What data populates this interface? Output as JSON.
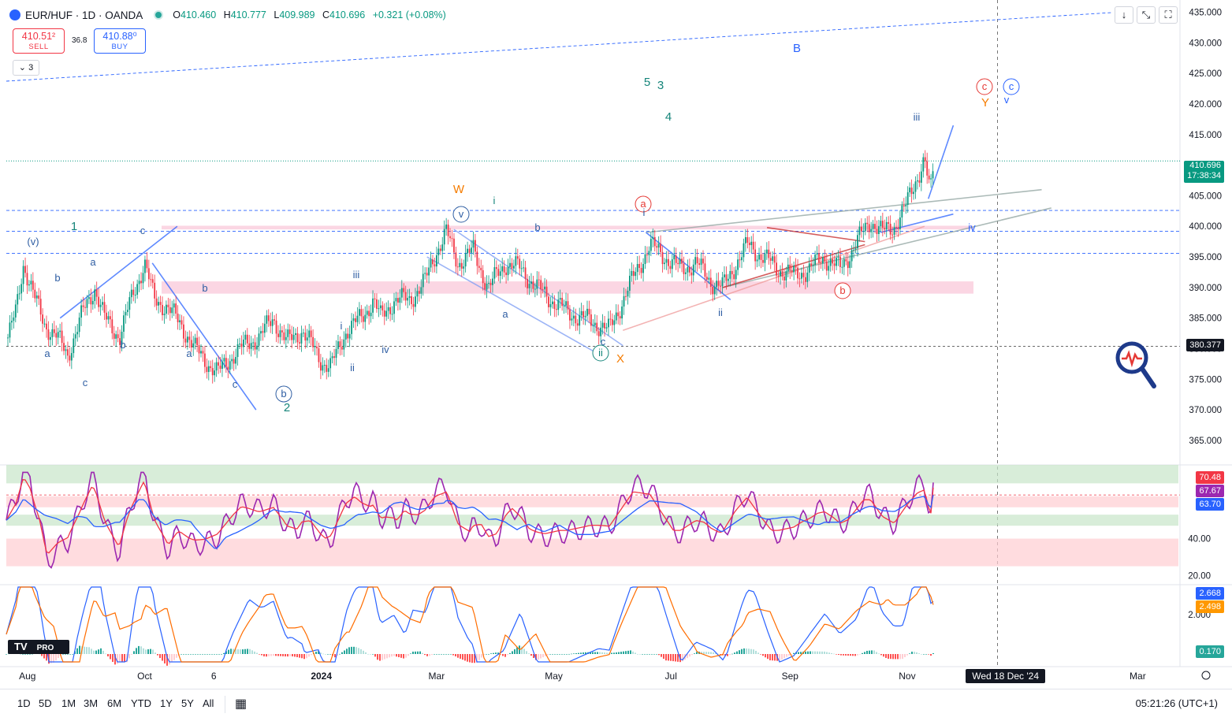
{
  "header": {
    "symbol": "EUR/HUF · 1D · OANDA",
    "open_label": "O",
    "open": "410.460",
    "high_label": "H",
    "high": "410.777",
    "low_label": "L",
    "low": "409.989",
    "close_label": "C",
    "close": "410.696",
    "change": "+0.321 (+0.08%)"
  },
  "trade": {
    "sell_price": "410.51²",
    "sell_label": "SELL",
    "spread": "36.8",
    "buy_price": "410.88⁰",
    "buy_label": "BUY",
    "layers_count": "3"
  },
  "toolbar": {
    "down_icon": "arrow-down-icon",
    "collapse_icon": "collapse-icon",
    "fullscreen_icon": "fullscreen-icon"
  },
  "price_labels": {
    "last": "410.696",
    "countdown": "17:38:34",
    "crosshair": "380.377"
  },
  "indicator_labels": {
    "rsi_a": "70.48",
    "rsi_b": "67.67",
    "rsi_c": "63.70",
    "macd_a": "2.668",
    "macd_b": "2.498",
    "macd_c": "0.170"
  },
  "crosshair_date": "Wed 18 Dec '24",
  "bottom": {
    "timeframes": [
      "1D",
      "5D",
      "1M",
      "3M",
      "6M",
      "YTD",
      "1Y",
      "5Y",
      "All"
    ],
    "clock": "05:21:26 (UTC+1)"
  },
  "chart_data": [
    {
      "type": "candlestick",
      "title": "EUR/HUF · 1D · OANDA",
      "ylim": [
        361,
        437
      ],
      "y_ticks": [
        435,
        430,
        425,
        420,
        415,
        410,
        405,
        400,
        395,
        390,
        385,
        380,
        375,
        370,
        365
      ],
      "y_tick_labels": [
        "435.000",
        "430.000",
        "425.000",
        "420.000",
        "415.000",
        "410.000",
        "405.000",
        "400.000",
        "395.000",
        "390.000",
        "385.000",
        "380.000",
        "375.000",
        "370.000",
        "365.000"
      ],
      "x_ticks": [
        {
          "label": "Aug",
          "date": "2023-08-01"
        },
        {
          "label": "Oct",
          "date": "2023-10-01"
        },
        {
          "label": "6",
          "date": "2023-11-06"
        },
        {
          "label": "2024",
          "date": "2024-01-01"
        },
        {
          "label": "Mar",
          "date": "2024-03-01"
        },
        {
          "label": "May",
          "date": "2024-05-01"
        },
        {
          "label": "Jul",
          "date": "2024-07-01"
        },
        {
          "label": "Sep",
          "date": "2024-09-01"
        },
        {
          "label": "Nov",
          "date": "2024-11-01"
        },
        {
          "label": "Mar",
          "date": "2025-03-01"
        }
      ],
      "x_range": [
        "2023-07-21",
        "2025-03-23"
      ],
      "price_path": [
        {
          "date": "2023-07-21",
          "price": 381
        },
        {
          "date": "2023-07-26",
          "price": 386
        },
        {
          "date": "2023-07-30",
          "price": 394
        },
        {
          "date": "2023-08-05",
          "price": 388
        },
        {
          "date": "2023-08-10",
          "price": 384
        },
        {
          "date": "2023-08-16",
          "price": 382
        },
        {
          "date": "2023-08-22",
          "price": 379
        },
        {
          "date": "2023-08-30",
          "price": 386
        },
        {
          "date": "2023-09-05",
          "price": 390
        },
        {
          "date": "2023-09-10",
          "price": 385
        },
        {
          "date": "2023-09-18",
          "price": 382
        },
        {
          "date": "2023-09-25",
          "price": 389
        },
        {
          "date": "2023-10-01",
          "price": 394
        },
        {
          "date": "2023-10-06",
          "price": 388
        },
        {
          "date": "2023-10-12",
          "price": 387
        },
        {
          "date": "2023-10-20",
          "price": 384
        },
        {
          "date": "2023-10-27",
          "price": 380
        },
        {
          "date": "2023-11-02",
          "price": 378
        },
        {
          "date": "2023-11-08",
          "price": 376
        },
        {
          "date": "2023-11-16",
          "price": 379
        },
        {
          "date": "2023-11-24",
          "price": 381
        },
        {
          "date": "2023-11-30",
          "price": 382
        },
        {
          "date": "2023-12-07",
          "price": 385
        },
        {
          "date": "2023-12-14",
          "price": 381
        },
        {
          "date": "2023-12-22",
          "price": 383
        },
        {
          "date": "2024-01-01",
          "price": 378
        },
        {
          "date": "2024-01-06",
          "price": 377
        },
        {
          "date": "2024-01-14",
          "price": 383
        },
        {
          "date": "2024-01-22",
          "price": 385
        },
        {
          "date": "2024-01-28",
          "price": 388
        },
        {
          "date": "2024-02-01",
          "price": 385
        },
        {
          "date": "2024-02-08",
          "price": 388
        },
        {
          "date": "2024-02-16",
          "price": 388
        },
        {
          "date": "2024-02-24",
          "price": 391
        },
        {
          "date": "2024-03-01",
          "price": 396
        },
        {
          "date": "2024-03-06",
          "price": 399
        },
        {
          "date": "2024-03-12",
          "price": 394
        },
        {
          "date": "2024-03-20",
          "price": 396
        },
        {
          "date": "2024-03-28",
          "price": 390
        },
        {
          "date": "2024-04-06",
          "price": 394
        },
        {
          "date": "2024-04-14",
          "price": 393
        },
        {
          "date": "2024-04-22",
          "price": 390
        },
        {
          "date": "2024-04-30",
          "price": 388
        },
        {
          "date": "2024-05-08",
          "price": 386
        },
        {
          "date": "2024-05-16",
          "price": 385
        },
        {
          "date": "2024-05-24",
          "price": 384
        },
        {
          "date": "2024-05-30",
          "price": 383
        },
        {
          "date": "2024-06-06",
          "price": 388
        },
        {
          "date": "2024-06-12",
          "price": 392
        },
        {
          "date": "2024-06-20",
          "price": 397
        },
        {
          "date": "2024-06-28",
          "price": 395
        },
        {
          "date": "2024-07-06",
          "price": 393
        },
        {
          "date": "2024-07-14",
          "price": 394
        },
        {
          "date": "2024-07-22",
          "price": 391
        },
        {
          "date": "2024-07-28",
          "price": 390
        },
        {
          "date": "2024-08-04",
          "price": 394
        },
        {
          "date": "2024-08-10",
          "price": 397
        },
        {
          "date": "2024-08-18",
          "price": 395
        },
        {
          "date": "2024-08-26",
          "price": 393
        },
        {
          "date": "2024-09-03",
          "price": 392
        },
        {
          "date": "2024-09-11",
          "price": 393
        },
        {
          "date": "2024-09-19",
          "price": 395
        },
        {
          "date": "2024-09-27",
          "price": 393
        },
        {
          "date": "2024-10-05",
          "price": 397
        },
        {
          "date": "2024-10-13",
          "price": 401
        },
        {
          "date": "2024-10-19",
          "price": 399
        },
        {
          "date": "2024-10-25",
          "price": 400
        },
        {
          "date": "2024-10-31",
          "price": 403
        },
        {
          "date": "2024-11-06",
          "price": 408
        },
        {
          "date": "2024-11-10",
          "price": 411
        },
        {
          "date": "2024-11-12",
          "price": 407
        },
        {
          "date": "2024-11-13",
          "price": 405
        },
        {
          "date": "2024-11-15",
          "price": 410.696
        }
      ],
      "horizontal_levels": [
        402.6,
        399.2,
        395.6,
        380.377
      ],
      "zones": [
        {
          "from": 389,
          "to": 391
        },
        {
          "from": 399.5,
          "to": 400.1
        }
      ],
      "wave_labels": [
        "(v)",
        "a",
        "b",
        "a",
        "c",
        "a",
        "b",
        "c",
        "b",
        "a",
        "b",
        "c",
        "2",
        "1",
        "c",
        "iii",
        "b",
        "i",
        "ii",
        "iv",
        "W",
        "v",
        "i",
        "b",
        "a",
        "c",
        "ii",
        "X",
        "a",
        "i",
        "5",
        "3",
        "4",
        "ii",
        "b",
        "B",
        "iii",
        "iv",
        "c",
        "c",
        "Y"
      ]
    },
    {
      "type": "line",
      "title": "RSI",
      "ylim": [
        15,
        80
      ],
      "y_ticks": [
        40,
        20
      ],
      "y_tick_labels": [
        "40.00",
        "20.00"
      ],
      "series": [
        {
          "name": "",
          "last": 70.48
        },
        {
          "name": "",
          "last": 67.67
        },
        {
          "name": "",
          "last": 63.7
        }
      ]
    },
    {
      "type": "line",
      "title": "MACD",
      "y_ticks": [
        2
      ],
      "y_tick_labels": [
        "2.000"
      ],
      "series": [
        {
          "name": "",
          "last": 2.668
        },
        {
          "name": "",
          "last": 2.498
        },
        {
          "name": "",
          "last": 0.17
        }
      ]
    }
  ]
}
